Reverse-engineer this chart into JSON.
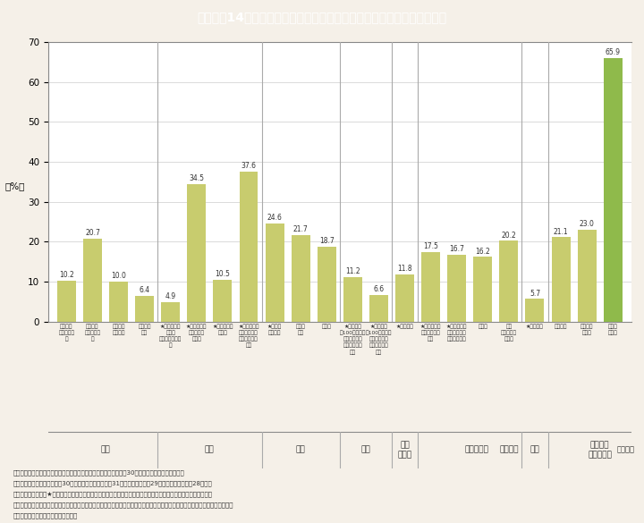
{
  "title": "Ｉ－１－14図　各分野における主な「指導的地位」に女性が占める割合",
  "title_bg": "#3ab4d8",
  "ylabel": "（%）",
  "ylim": [
    0,
    70
  ],
  "yticks": [
    0,
    10,
    20,
    30,
    40,
    50,
    60,
    70
  ],
  "bar_color": "#c8cc6e",
  "bar_color_last": "#8fba4b",
  "background_color": "#f5f0e8",
  "plot_bg": "#ffffff",
  "values": [
    10.2,
    20.7,
    10.0,
    6.4,
    4.9,
    34.5,
    10.5,
    37.6,
    24.6,
    21.7,
    18.7,
    11.2,
    6.6,
    11.8,
    17.5,
    16.7,
    16.2,
    20.2,
    5.7,
    21.1,
    23.0,
    65.9
  ],
  "label_texts": [
    "国会議員\n（衆議院）\n＊",
    "国会議員\n（参議院）\n＊",
    "都道府県\n議会議員",
    "都道府県\n知事",
    "★国家公務員\n採用者\n（総合職試験）\n＊",
    "★本省課長相\n当職の国家\n公務員",
    "★国の審議会\n等委員",
    "★都道府県に\nおける本府省\n課長相当職の\n職員",
    "★検察官\n（検事）",
    "裁判官\n＊＊",
    "弁護士",
    "★民間企業\n（100人以上）\nにおける管理\n職（課長相当\n職）",
    "★民間企業\n（100人以上）\nにおける管理\n職（部長相当\n職）",
    "★農業委員",
    "★初等中等教\n育機関の教頭\n以上",
    "★大学教授等\n（学長・副学\n長及び教授）",
    "研究者",
    "記者\n（日本新聞\n協会）",
    "★自治体長",
    "医師＊＊",
    "歯科医師\n＊＊＊",
    "薬剤師\n＊＊＊"
  ],
  "group_separators": [
    3.5,
    7.5,
    10.5,
    12.5,
    13.5,
    17.5,
    18.5
  ],
  "group_info": [
    [
      "政治",
      1.5
    ],
    [
      "行政",
      5.5
    ],
    [
      "司法",
      9.0
    ],
    [
      "雇用",
      11.5
    ],
    [
      "農林\n水産業",
      13.0
    ],
    [
      "教育・研究",
      15.75
    ],
    [
      "メディア",
      17.0
    ],
    [
      "地域",
      18.0
    ],
    [
      "その他の\n専門的職業",
      20.5
    ]
  ],
  "note_lines": [
    "（備考）１．内閣府「女性の政策・方針決定参画状況調べ」（平成30年度）より一部情報を更新。",
    "　　　　２．原則として平成30年値。ただし，＊は平成31年値，＊＊は平成29年値，＊＊＊は平成28年値。",
    "　　　　　　なお，★印は，第４次男女共同参画基本計画において当該項目が成果目標として掲げられているもの。",
    "　　　　　　また，「国家公務員採用者（総合職試験）」は，直接的に指導的地位を示す指標ではないが，将来的に指導的地位に",
    "　　　　　　就く可能性の高いもの。"
  ]
}
